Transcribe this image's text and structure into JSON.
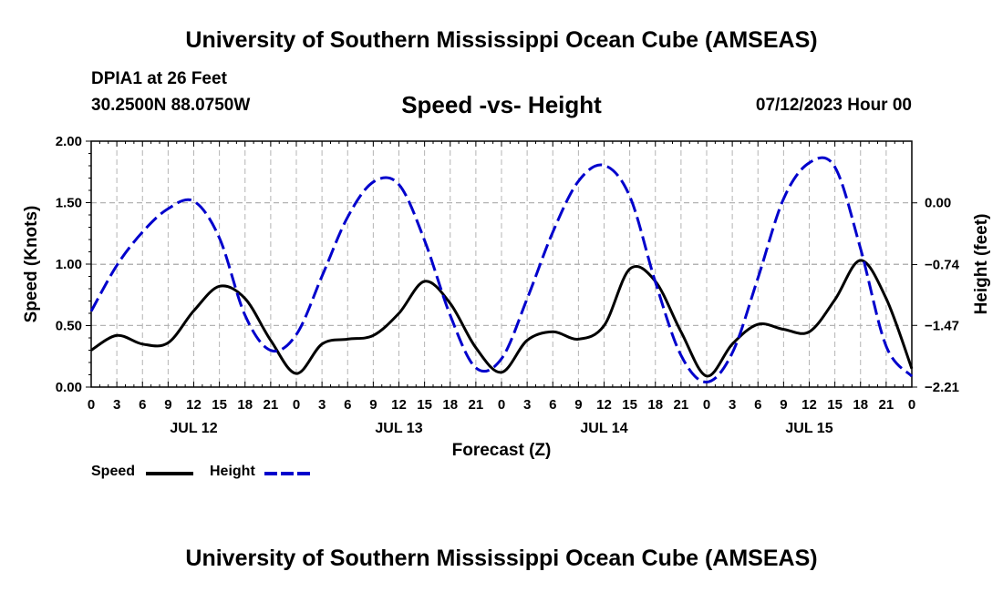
{
  "header": {
    "title": "University of Southern Mississippi Ocean Cube (AMSEAS)",
    "station": "DPIA1 at 26 Feet",
    "coords": "30.2500N  88.0750W",
    "run_time": "07/12/2023 Hour 00"
  },
  "footer": {
    "title": "University of Southern Mississippi Ocean Cube (AMSEAS)"
  },
  "chart_data": {
    "type": "line",
    "title": "Speed -vs- Height",
    "xlabel": "Forecast (Z)",
    "ylabel": "Speed (Knots)",
    "y2label": "Height (feet)",
    "xlim": [
      0,
      96
    ],
    "ylim": [
      0,
      2
    ],
    "y2lim": [
      -2.21,
      0.74
    ],
    "yticks": [
      "0.00",
      "0.50",
      "1.00",
      "1.50",
      "2.00"
    ],
    "y2ticks": [
      "-2.21",
      "-1.47",
      "-0.74",
      "0.00"
    ],
    "xtick_labels": [
      "0",
      "3",
      "6",
      "9",
      "12",
      "15",
      "18",
      "21",
      "0",
      "3",
      "6",
      "9",
      "12",
      "15",
      "18",
      "21",
      "0",
      "3",
      "6",
      "9",
      "12",
      "15",
      "18",
      "21",
      "0",
      "3",
      "6",
      "9",
      "12",
      "15",
      "18",
      "21",
      "0"
    ],
    "day_labels": [
      {
        "hour": 12,
        "label": "JUL 12"
      },
      {
        "hour": 36,
        "label": "JUL 13"
      },
      {
        "hour": 60,
        "label": "JUL 14"
      },
      {
        "hour": 84,
        "label": "JUL 15"
      }
    ],
    "grid": true,
    "series": [
      {
        "name": "Speed",
        "color": "#000000",
        "style": "solid",
        "axis": "left",
        "x": [
          0,
          3,
          6,
          9,
          12,
          15,
          18,
          21,
          24,
          27,
          30,
          33,
          36,
          39,
          42,
          45,
          48,
          51,
          54,
          57,
          60,
          63,
          66,
          69,
          72,
          75,
          78,
          81,
          84,
          87,
          90,
          93,
          96
        ],
        "values": [
          0.3,
          0.42,
          0.35,
          0.36,
          0.62,
          0.82,
          0.72,
          0.38,
          0.11,
          0.35,
          0.39,
          0.42,
          0.6,
          0.86,
          0.68,
          0.32,
          0.12,
          0.38,
          0.45,
          0.39,
          0.5,
          0.96,
          0.86,
          0.45,
          0.09,
          0.35,
          0.51,
          0.47,
          0.45,
          0.71,
          1.03,
          0.72,
          0.15
        ]
      },
      {
        "name": "Height",
        "color": "#0000cc",
        "style": "dashed",
        "axis": "right",
        "x": [
          0,
          3,
          6,
          9,
          12,
          15,
          18,
          21,
          24,
          27,
          30,
          33,
          36,
          39,
          42,
          45,
          48,
          51,
          54,
          57,
          60,
          63,
          66,
          69,
          72,
          75,
          78,
          81,
          84,
          87,
          90,
          93,
          96
        ],
        "values": [
          -1.3,
          -0.75,
          -0.35,
          -0.07,
          0.02,
          -0.42,
          -1.35,
          -1.77,
          -1.58,
          -0.88,
          -0.17,
          0.25,
          0.22,
          -0.45,
          -1.35,
          -1.98,
          -1.87,
          -1.15,
          -0.35,
          0.26,
          0.45,
          0.08,
          -0.95,
          -1.83,
          -2.15,
          -1.8,
          -0.9,
          0.05,
          0.48,
          0.43,
          -0.55,
          -1.72,
          -2.08
        ]
      }
    ],
    "legend": {
      "placement": "bottom-left",
      "speed_label": "Speed",
      "height_label": "Height"
    }
  }
}
